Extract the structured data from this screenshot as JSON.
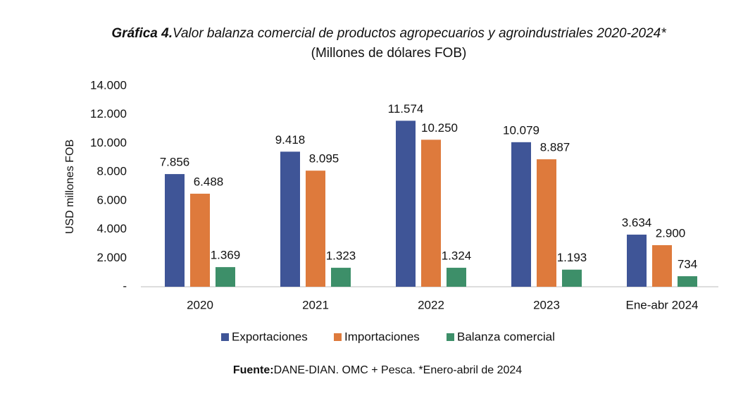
{
  "chart_data": {
    "type": "bar",
    "title_label": "Gráfica 4.",
    "title": "Valor balanza comercial de productos agropecuarios y agroindustriales 2020-2024*",
    "subtitle": "(Millones de dólares FOB)",
    "y_label": "USD millones FOB",
    "categories": [
      "2020",
      "2021",
      "2022",
      "2023",
      "Ene-abr 2024"
    ],
    "series": [
      {
        "name": "Exportaciones",
        "color": "#3f5597",
        "values": [
          7856,
          9418,
          11574,
          10079,
          3634
        ],
        "value_labels": [
          "7.856",
          "9.418",
          "11.574",
          "10.079",
          "3.634"
        ]
      },
      {
        "name": "Importaciones",
        "color": "#de7a3c",
        "values": [
          6488,
          8095,
          10250,
          8887,
          2900
        ],
        "value_labels": [
          "6.488",
          "8.095",
          "10.250",
          "8.887",
          "2.900"
        ]
      },
      {
        "name": "Balanza comercial",
        "color": "#3d8f69",
        "values": [
          1369,
          1323,
          1324,
          1193,
          734
        ],
        "value_labels": [
          "1.369",
          "1.323",
          "1.324",
          "1.193",
          "734"
        ]
      }
    ],
    "ylim": [
      0,
      14000
    ],
    "yticks": [
      {
        "value": 0,
        "label": "-"
      },
      {
        "value": 2000,
        "label": "2.000"
      },
      {
        "value": 4000,
        "label": "4.000"
      },
      {
        "value": 6000,
        "label": "6.000"
      },
      {
        "value": 8000,
        "label": "8.000"
      },
      {
        "value": 10000,
        "label": "10.000"
      },
      {
        "value": 12000,
        "label": "12.000"
      },
      {
        "value": 14000,
        "label": "14.000"
      }
    ],
    "grid": false,
    "source_label": "Fuente:",
    "source": "DANE-DIAN. OMC + Pesca. *Enero-abril de 2024"
  }
}
